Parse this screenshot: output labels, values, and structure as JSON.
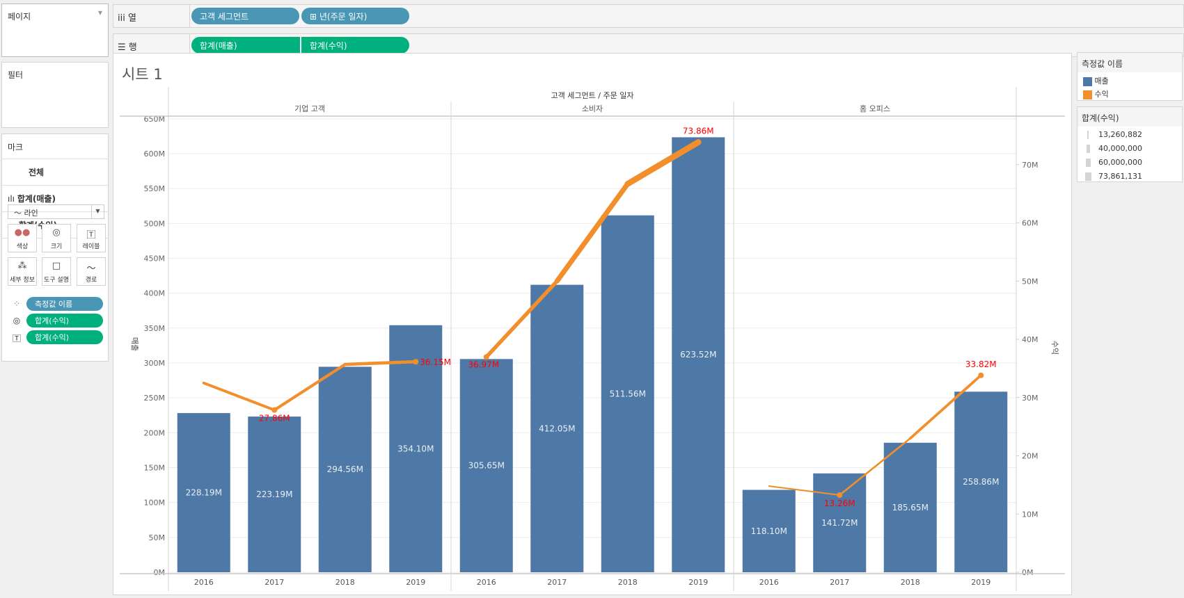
{
  "pages_panel": {
    "title": "페이지"
  },
  "columns_shelf": {
    "label": "열",
    "pills": [
      "고객 세그먼트",
      "⊞ 년(주문 일자)"
    ]
  },
  "rows_shelf": {
    "label": "행",
    "pills": [
      "합계(매출)",
      "합계(수익)"
    ]
  },
  "filters_panel": {
    "title": "필터"
  },
  "marks_panel": {
    "title": "마크",
    "all": "전체",
    "sales": "합계(매출)",
    "profit": "합계(수익)",
    "mark_type": "라인",
    "buttons": [
      "색상",
      "크기",
      "레이블",
      "세부 정보",
      "도구 설명",
      "경로"
    ],
    "pills": [
      "측정값 이름",
      "합계(수익)",
      "합계(수익)"
    ]
  },
  "sheet": {
    "title": "시트 1"
  },
  "legend_measures": {
    "title": "측정값 이름",
    "items": [
      "매출",
      "수익"
    ],
    "colors": [
      "#4e79a7",
      "#f28e2b"
    ]
  },
  "legend_size": {
    "title": "합계(수익)",
    "items": [
      "13,260,882",
      "40,000,000",
      "60,000,000",
      "73,861,131"
    ]
  },
  "chart_data": {
    "type": "bar+line",
    "header": "고객 세그먼트 / 주문 일자",
    "panes": [
      "기업 고객",
      "소비자",
      "홈 오피스"
    ],
    "categories": [
      "2016",
      "2017",
      "2018",
      "2019"
    ],
    "left_axis": {
      "title": "매출",
      "ticks": [
        "0M",
        "50M",
        "100M",
        "150M",
        "200M",
        "250M",
        "300M",
        "350M",
        "400M",
        "450M",
        "500M",
        "550M",
        "600M",
        "650M"
      ],
      "range": [
        0,
        650
      ]
    },
    "right_axis": {
      "title": "수익",
      "ticks": [
        "0M",
        "10M",
        "20M",
        "30M",
        "40M",
        "50M",
        "60M",
        "70M"
      ],
      "range": [
        0,
        78
      ]
    },
    "sales": [
      [
        228.19,
        223.19,
        294.56,
        354.1
      ],
      [
        305.65,
        412.05,
        511.56,
        623.52
      ],
      [
        118.1,
        141.72,
        185.65,
        258.86
      ]
    ],
    "sales_labels": [
      [
        "228.19M",
        "223.19M",
        "294.56M",
        "354.10M"
      ],
      [
        "305.65M",
        "412.05M",
        "511.56M",
        "623.52M"
      ],
      [
        "118.10M",
        "141.72M",
        "185.65M",
        "258.86M"
      ]
    ],
    "profit": [
      [
        32.5,
        27.86,
        35.7,
        36.15
      ],
      [
        36.97,
        50.0,
        66.7,
        73.86
      ],
      [
        14.8,
        13.26,
        23.0,
        33.82
      ]
    ],
    "profit_labels": [
      [
        null,
        "27.86M",
        null,
        "36.15M"
      ],
      [
        "36.97M",
        null,
        null,
        "73.86M"
      ],
      [
        null,
        "13.26M",
        null,
        "33.82M"
      ]
    ]
  }
}
